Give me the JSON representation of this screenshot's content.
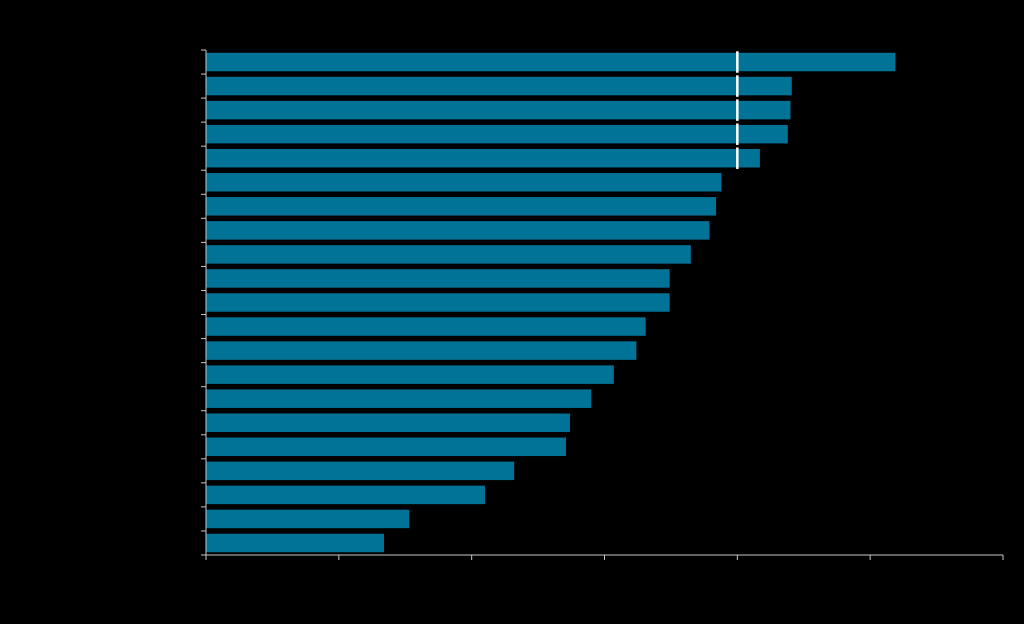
{
  "chart_data": {
    "type": "bar",
    "orientation": "horizontal",
    "title": "",
    "xlabel": "",
    "ylabel": "",
    "xlim": [
      0,
      60
    ],
    "x_major_step": 10,
    "grid": false,
    "legend": "none",
    "categories": [
      "",
      "",
      "",
      "",
      "",
      "",
      "",
      "",
      "",
      "",
      "",
      "",
      "",
      "",
      "",
      "",
      "",
      "",
      "",
      "",
      ""
    ],
    "series": [
      {
        "name": "",
        "color": "#007397",
        "values": [
          51.9,
          44.1,
          44.0,
          43.8,
          41.7,
          38.8,
          38.4,
          37.9,
          36.5,
          34.9,
          34.9,
          33.1,
          32.4,
          30.7,
          29.0,
          27.4,
          27.1,
          23.2,
          21.0,
          15.3,
          13.4
        ]
      }
    ],
    "reference_line": {
      "x": 40,
      "color": "#ffffff"
    },
    "axis_color": "#c8c8c8"
  }
}
